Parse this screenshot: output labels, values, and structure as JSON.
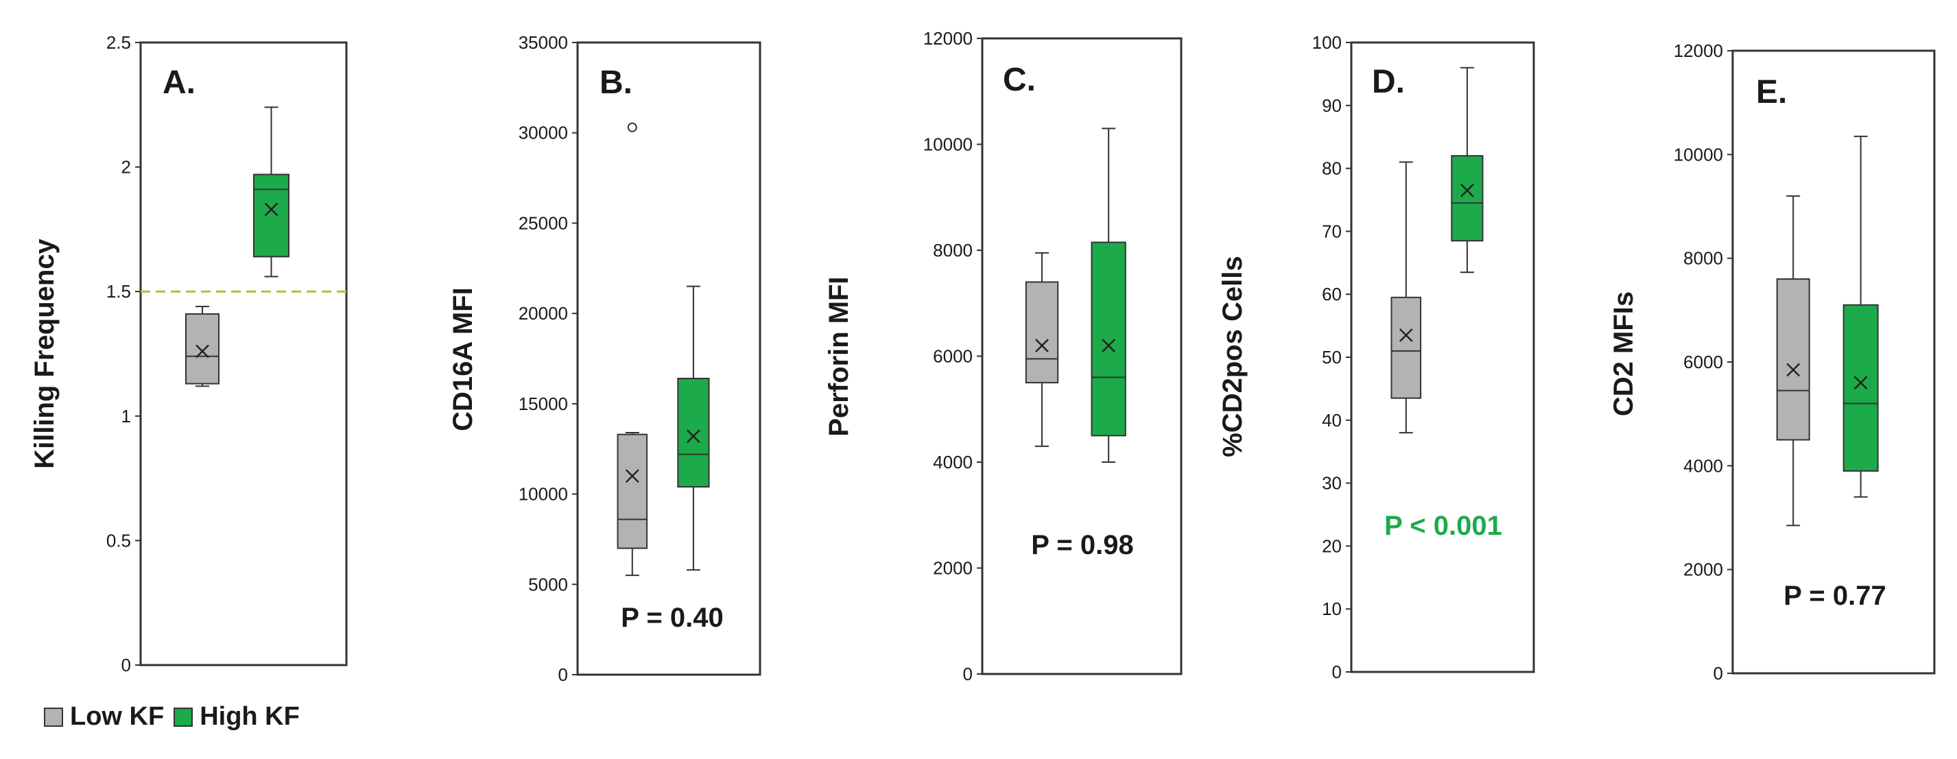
{
  "chart_data": [
    {
      "type": "box",
      "panel_label": "A.",
      "ylabel": "Killing Frequency",
      "ylim": [
        0,
        2.5
      ],
      "yticks": [
        "0",
        "0.5",
        "1",
        "1.5",
        "2",
        "2.5"
      ],
      "ytick_values": [
        0,
        0.5,
        1,
        1.5,
        2,
        2.5
      ],
      "threshold_line": 1.5,
      "p_value": "",
      "groups": [
        {
          "name": "Low KF",
          "min": 1.12,
          "q1": 1.13,
          "median": 1.24,
          "q3": 1.41,
          "max": 1.44,
          "mean": 1.26,
          "outliers": []
        },
        {
          "name": "High KF",
          "min": 1.56,
          "q1": 1.64,
          "median": 1.91,
          "q3": 1.97,
          "max": 2.24,
          "mean": 1.83,
          "outliers": []
        }
      ]
    },
    {
      "type": "box",
      "panel_label": "B.",
      "ylabel": "CD16A MFI",
      "ylim": [
        0,
        35000
      ],
      "yticks": [
        "0",
        "5000",
        "10000",
        "15000",
        "20000",
        "25000",
        "30000",
        "35000"
      ],
      "ytick_values": [
        0,
        5000,
        10000,
        15000,
        20000,
        25000,
        30000,
        35000
      ],
      "p_value": "P = 0.40",
      "groups": [
        {
          "name": "Low KF",
          "min": 5500,
          "q1": 7000,
          "median": 8600,
          "q3": 13300,
          "max": 13400,
          "mean": 11000,
          "outliers": [
            30300
          ]
        },
        {
          "name": "High KF",
          "min": 5800,
          "q1": 10400,
          "median": 12200,
          "q3": 16400,
          "max": 21500,
          "mean": 13200,
          "outliers": []
        }
      ]
    },
    {
      "type": "box",
      "panel_label": "C.",
      "ylabel": "Perforin MFI",
      "ylim": [
        0,
        12000
      ],
      "yticks": [
        "0",
        "2000",
        "4000",
        "6000",
        "8000",
        "10000",
        "12000"
      ],
      "ytick_values": [
        0,
        2000,
        4000,
        6000,
        8000,
        10000,
        12000
      ],
      "p_value": "P = 0.98",
      "groups": [
        {
          "name": "Low KF",
          "min": 4300,
          "q1": 5500,
          "median": 5950,
          "q3": 7400,
          "max": 7950,
          "mean": 6200,
          "outliers": []
        },
        {
          "name": "High KF",
          "min": 4000,
          "q1": 4500,
          "median": 5600,
          "q3": 8150,
          "max": 10300,
          "mean": 6200,
          "outliers": []
        }
      ]
    },
    {
      "type": "box",
      "panel_label": "D.",
      "ylabel": "%CD2pos Cells",
      "ylim": [
        0,
        100
      ],
      "yticks": [
        "0",
        "10",
        "20",
        "30",
        "40",
        "50",
        "60",
        "70",
        "80",
        "90",
        "100"
      ],
      "ytick_values": [
        0,
        10,
        20,
        30,
        40,
        50,
        60,
        70,
        80,
        90,
        100
      ],
      "p_value": "P < 0.001",
      "p_color": "#1daa4a",
      "groups": [
        {
          "name": "Low KF",
          "min": 38,
          "q1": 43.5,
          "median": 51,
          "q3": 59.5,
          "max": 81,
          "mean": 53.5,
          "outliers": []
        },
        {
          "name": "High KF",
          "min": 63.5,
          "q1": 68.5,
          "median": 74.5,
          "q3": 82,
          "max": 96,
          "mean": 76.5,
          "outliers": []
        }
      ]
    },
    {
      "type": "box",
      "panel_label": "E.",
      "ylabel": "CD2 MFIs",
      "ylim": [
        0,
        12000
      ],
      "yticks": [
        "0",
        "2000",
        "4000",
        "6000",
        "8000",
        "10000",
        "12000"
      ],
      "ytick_values": [
        0,
        2000,
        4000,
        6000,
        8000,
        10000,
        12000
      ],
      "p_value": "P = 0.77",
      "groups": [
        {
          "name": "Low KF",
          "min": 2850,
          "q1": 4500,
          "median": 5450,
          "q3": 7600,
          "max": 9200,
          "mean": 5850,
          "outliers": []
        },
        {
          "name": "High KF",
          "min": 3400,
          "q1": 3900,
          "median": 5200,
          "q3": 7100,
          "max": 10350,
          "mean": 5600,
          "outliers": []
        }
      ]
    }
  ],
  "legend": [
    {
      "label": "Low KF",
      "color": "#b3b3b3"
    },
    {
      "label": "High KF",
      "color": "#1daa4a"
    }
  ],
  "colors": {
    "low": "#b3b3b3",
    "high": "#1daa4a",
    "threshold": "#9acd32",
    "axis": "#333333"
  }
}
